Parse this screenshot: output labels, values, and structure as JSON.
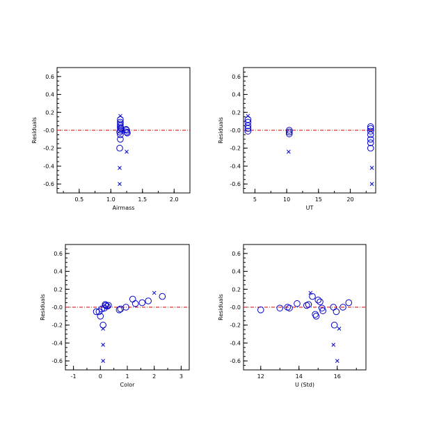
{
  "colors": {
    "marker": "#0000cc",
    "zero_line": "#cc0000",
    "axis": "#000000",
    "background": "#ffffff"
  },
  "chart_data": [
    {
      "type": "scatter",
      "xlabel": "Airmass",
      "ylabel": "Residuals",
      "xlim": [
        0.15,
        2.25
      ],
      "ylim": [
        -0.7,
        0.7
      ],
      "xticks": [
        0.5,
        1.0,
        1.5,
        2.0
      ],
      "xtick_labels": [
        "0.5",
        "1.0",
        "1.5",
        "2.0"
      ],
      "yticks": [
        0.6,
        0.4,
        0.2,
        0.0,
        -0.2,
        -0.4,
        -0.6
      ],
      "ytick_labels": [
        "0.6",
        "0.4",
        "0.2",
        "-0.0",
        "-0.2",
        "-0.4",
        "-0.6"
      ],
      "reference_line_y": 0.0,
      "circles": [
        [
          1.15,
          0.12
        ],
        [
          1.15,
          0.09
        ],
        [
          1.15,
          0.07
        ],
        [
          1.15,
          0.05
        ],
        [
          1.15,
          0.03
        ],
        [
          1.16,
          0.02
        ],
        [
          1.15,
          0.0
        ],
        [
          1.14,
          -0.02
        ],
        [
          1.15,
          -0.05
        ],
        [
          1.15,
          -0.1
        ],
        [
          1.14,
          -0.2
        ],
        [
          1.24,
          0.01
        ],
        [
          1.25,
          0.0
        ],
        [
          1.25,
          -0.02
        ],
        [
          1.26,
          -0.03
        ]
      ],
      "crosses": [
        [
          1.15,
          0.16
        ],
        [
          1.14,
          -0.42
        ],
        [
          1.14,
          -0.6
        ],
        [
          1.25,
          -0.24
        ]
      ]
    },
    {
      "type": "scatter",
      "xlabel": "UT",
      "ylabel": "Residuals",
      "xlim": [
        3.2,
        24.0
      ],
      "ylim": [
        -0.7,
        0.7
      ],
      "xticks": [
        5,
        10,
        15,
        20
      ],
      "xtick_labels": [
        "5",
        "10",
        "15",
        "20"
      ],
      "yticks": [
        0.6,
        0.4,
        0.2,
        0.0,
        -0.2,
        -0.4,
        -0.6
      ],
      "ytick_labels": [
        "0.6",
        "0.4",
        "0.2",
        "-0.0",
        "-0.2",
        "-0.4",
        "-0.6"
      ],
      "reference_line_y": 0.0,
      "circles": [
        [
          3.9,
          0.12
        ],
        [
          3.9,
          0.09
        ],
        [
          3.9,
          0.05
        ],
        [
          3.9,
          0.02
        ],
        [
          3.9,
          -0.01
        ],
        [
          10.4,
          0.0
        ],
        [
          10.4,
          -0.02
        ],
        [
          10.4,
          -0.04
        ],
        [
          23.2,
          0.04
        ],
        [
          23.2,
          0.02
        ],
        [
          23.2,
          -0.01
        ],
        [
          23.2,
          -0.05
        ],
        [
          23.2,
          -0.1
        ],
        [
          23.2,
          -0.14
        ],
        [
          23.2,
          -0.2
        ]
      ],
      "crosses": [
        [
          3.9,
          0.16
        ],
        [
          10.3,
          -0.24
        ],
        [
          23.4,
          -0.42
        ],
        [
          23.4,
          -0.6
        ]
      ]
    },
    {
      "type": "scatter",
      "xlabel": "Color",
      "ylabel": "Residuals",
      "xlim": [
        -1.3,
        3.3
      ],
      "ylim": [
        -0.7,
        0.7
      ],
      "xticks": [
        -1,
        0,
        1,
        2,
        3
      ],
      "xtick_labels": [
        "-1",
        "0",
        "1",
        "2",
        "3"
      ],
      "yticks": [
        0.6,
        0.4,
        0.2,
        0.0,
        -0.2,
        -0.4,
        -0.6
      ],
      "ytick_labels": [
        "0.6",
        "0.4",
        "0.2",
        "-0.0",
        "-0.2",
        "-0.4",
        "-0.6"
      ],
      "reference_line_y": 0.0,
      "circles": [
        [
          -0.15,
          -0.05
        ],
        [
          -0.05,
          -0.05
        ],
        [
          0.0,
          -0.1
        ],
        [
          0.05,
          -0.02
        ],
        [
          0.1,
          -0.2
        ],
        [
          0.15,
          -0.01
        ],
        [
          0.18,
          0.03
        ],
        [
          0.2,
          0.02
        ],
        [
          0.25,
          0.01
        ],
        [
          0.3,
          0.02
        ],
        [
          0.7,
          -0.03
        ],
        [
          0.75,
          -0.02
        ],
        [
          0.95,
          0.0
        ],
        [
          1.2,
          0.09
        ],
        [
          1.3,
          0.04
        ],
        [
          1.55,
          0.05
        ],
        [
          1.78,
          0.07
        ],
        [
          2.3,
          0.12
        ]
      ],
      "crosses": [
        [
          0.1,
          -0.24
        ],
        [
          0.1,
          -0.42
        ],
        [
          0.1,
          -0.6
        ],
        [
          2.0,
          0.16
        ]
      ]
    },
    {
      "type": "scatter",
      "xlabel": "U (Std)",
      "ylabel": "Residuals",
      "xlim": [
        11.1,
        17.5
      ],
      "ylim": [
        -0.7,
        0.7
      ],
      "xticks": [
        12,
        14,
        16
      ],
      "xtick_labels": [
        "12",
        "14",
        "16"
      ],
      "yticks": [
        0.6,
        0.4,
        0.2,
        0.0,
        -0.2,
        -0.4,
        -0.6
      ],
      "ytick_labels": [
        "0.6",
        "0.4",
        "0.2",
        "-0.0",
        "-0.2",
        "-0.4",
        "-0.6"
      ],
      "reference_line_y": 0.0,
      "circles": [
        [
          12.0,
          -0.03
        ],
        [
          13.0,
          -0.01
        ],
        [
          13.4,
          0.0
        ],
        [
          13.5,
          -0.01
        ],
        [
          13.9,
          0.04
        ],
        [
          14.4,
          0.02
        ],
        [
          14.5,
          0.03
        ],
        [
          14.7,
          0.12
        ],
        [
          14.85,
          -0.08
        ],
        [
          14.9,
          -0.1
        ],
        [
          15.0,
          0.08
        ],
        [
          15.1,
          0.06
        ],
        [
          15.2,
          -0.01
        ],
        [
          15.25,
          -0.04
        ],
        [
          15.8,
          0.0
        ],
        [
          15.85,
          -0.2
        ],
        [
          15.95,
          -0.05
        ],
        [
          16.3,
          0.0
        ],
        [
          16.6,
          0.05
        ]
      ],
      "crosses": [
        [
          14.6,
          0.16
        ],
        [
          15.8,
          -0.42
        ],
        [
          16.0,
          -0.6
        ],
        [
          16.1,
          -0.24
        ]
      ]
    }
  ]
}
